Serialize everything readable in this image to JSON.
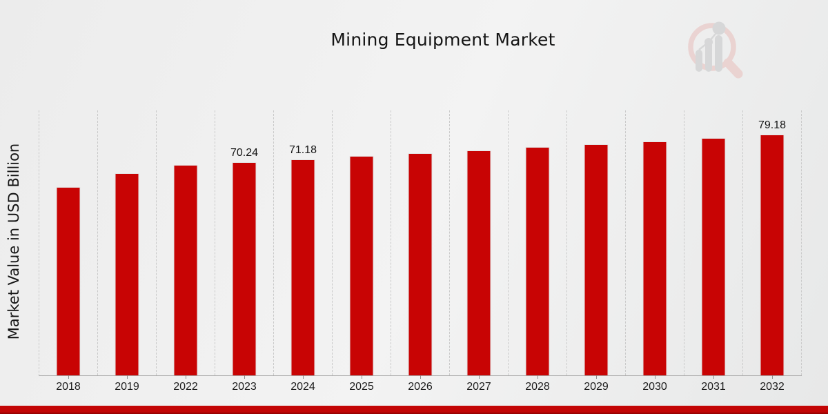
{
  "page": {
    "title": "Mining Equipment Market"
  },
  "chart_data": {
    "type": "bar",
    "title": "Mining Equipment Market",
    "xlabel": "",
    "ylabel": "Market Value in USD Billion",
    "categories": [
      "2018",
      "2019",
      "2022",
      "2023",
      "2024",
      "2025",
      "2026",
      "2027",
      "2028",
      "2029",
      "2030",
      "2031",
      "2032"
    ],
    "values": [
      62.0,
      66.5,
      69.3,
      70.24,
      71.18,
      72.13,
      73.09,
      74.07,
      75.06,
      76.06,
      77.08,
      78.12,
      79.18
    ],
    "data_labels": {
      "2023": "70.24",
      "2024": "71.18",
      "2032": "79.18"
    },
    "ylim": [
      0,
      87.2
    ],
    "grid": "vertical-dashed-between-categories",
    "legend": "none",
    "bar_color": "#c80404",
    "grid_color": "#c9c9c9",
    "axis_color": "#a9a9a9",
    "text_color": "#1a1a1a",
    "background_color": "#ededee",
    "footer_stripe_colors": [
      "#c30505",
      "#8e0101"
    ],
    "watermark": "magnifier-bar-chart-logo"
  }
}
